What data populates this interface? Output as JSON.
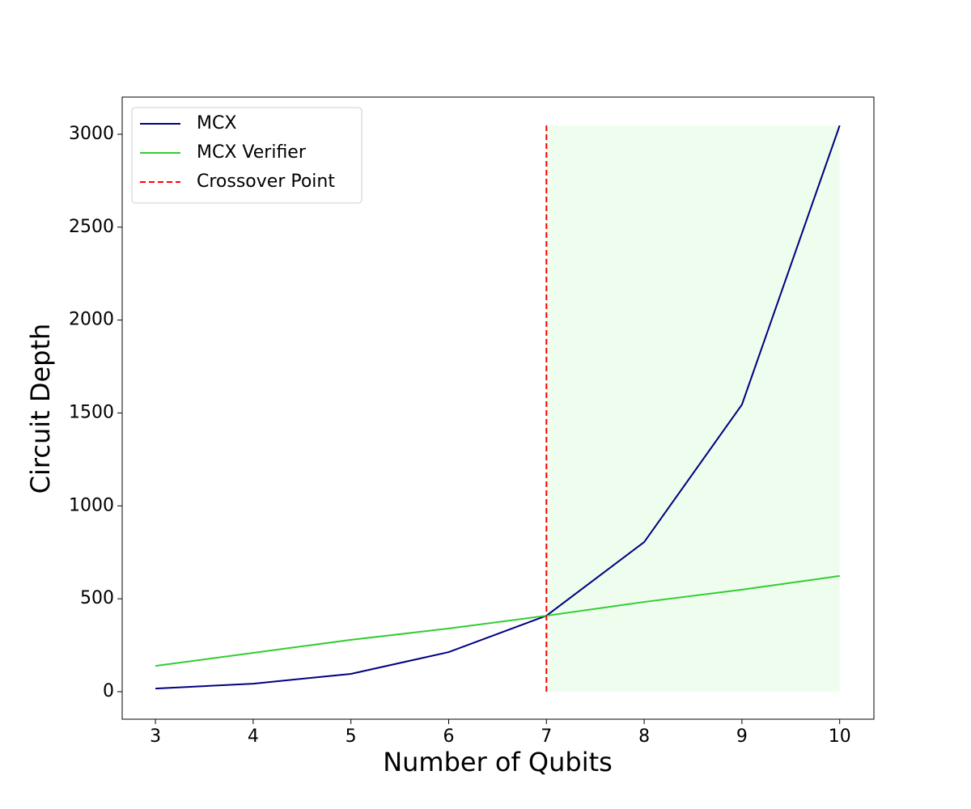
{
  "chart_data": {
    "type": "line",
    "xlabel": "Number of Qubits",
    "ylabel": "Circuit Depth",
    "x": [
      3,
      4,
      5,
      6,
      7,
      8,
      9,
      10
    ],
    "series": [
      {
        "name": "MCX",
        "color": "#000080",
        "values": [
          17,
          43,
          96,
          213,
          409,
          805,
          1545,
          3047
        ]
      },
      {
        "name": "MCX Verifier",
        "color": "#32cd32",
        "values": [
          139,
          209,
          279,
          340,
          409,
          483,
          549,
          623
        ]
      }
    ],
    "crossover": {
      "name": "Crossover Point",
      "color": "#ff0000",
      "x": 7,
      "y": [
        0,
        3047
      ]
    },
    "shaded_region": {
      "color": "#eefdee",
      "x": [
        7,
        10
      ],
      "y": [
        0,
        3047
      ]
    },
    "xlim": [
      2.66,
      10.35
    ],
    "ylim": [
      -148,
      3200
    ],
    "xticks": [
      3,
      4,
      5,
      6,
      7,
      8,
      9,
      10
    ],
    "yticks": [
      0,
      500,
      1000,
      1500,
      2000,
      2500,
      3000
    ],
    "legend": "upper left",
    "grid": false
  }
}
